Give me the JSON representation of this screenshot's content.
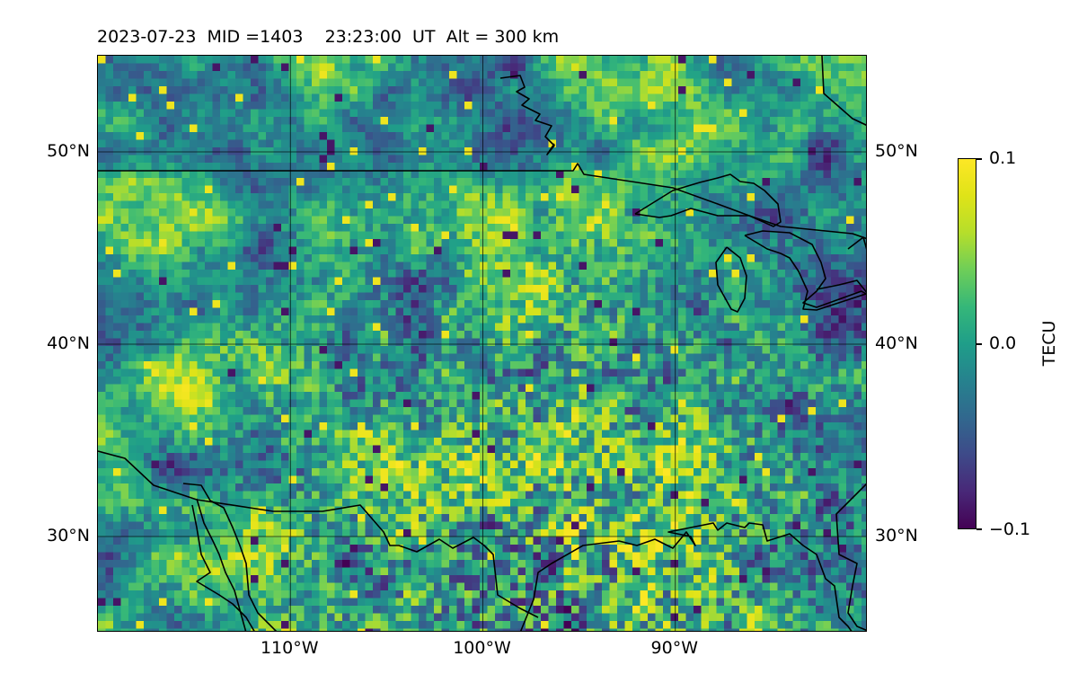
{
  "title": "2023-07-23  MID =1403    23:23:00  UT  Alt = 300 km",
  "map": {
    "lon_range": [
      -120,
      -80
    ],
    "lat_range": [
      25,
      55
    ],
    "left_lat_ticks": [
      "50°N",
      "40°N",
      "30°N"
    ],
    "right_lat_ticks": [
      "50°N",
      "40°N",
      "30°N"
    ],
    "bottom_lon_ticks": [
      "110°W",
      "100°W",
      "90°W"
    ],
    "gridlines": true,
    "coastlines": true,
    "colormap": "viridis"
  },
  "colorbar": {
    "label": "TECU",
    "ticks": [
      "0.1",
      "0.0",
      "−0.1"
    ],
    "vmin": -0.1,
    "vmax": 0.1,
    "colors": [
      "#440154",
      "#482878",
      "#3e4a89",
      "#31688e",
      "#26828e",
      "#1f9e89",
      "#35b779",
      "#6ece58",
      "#b5de2b",
      "#dfe318",
      "#fde725"
    ]
  }
}
